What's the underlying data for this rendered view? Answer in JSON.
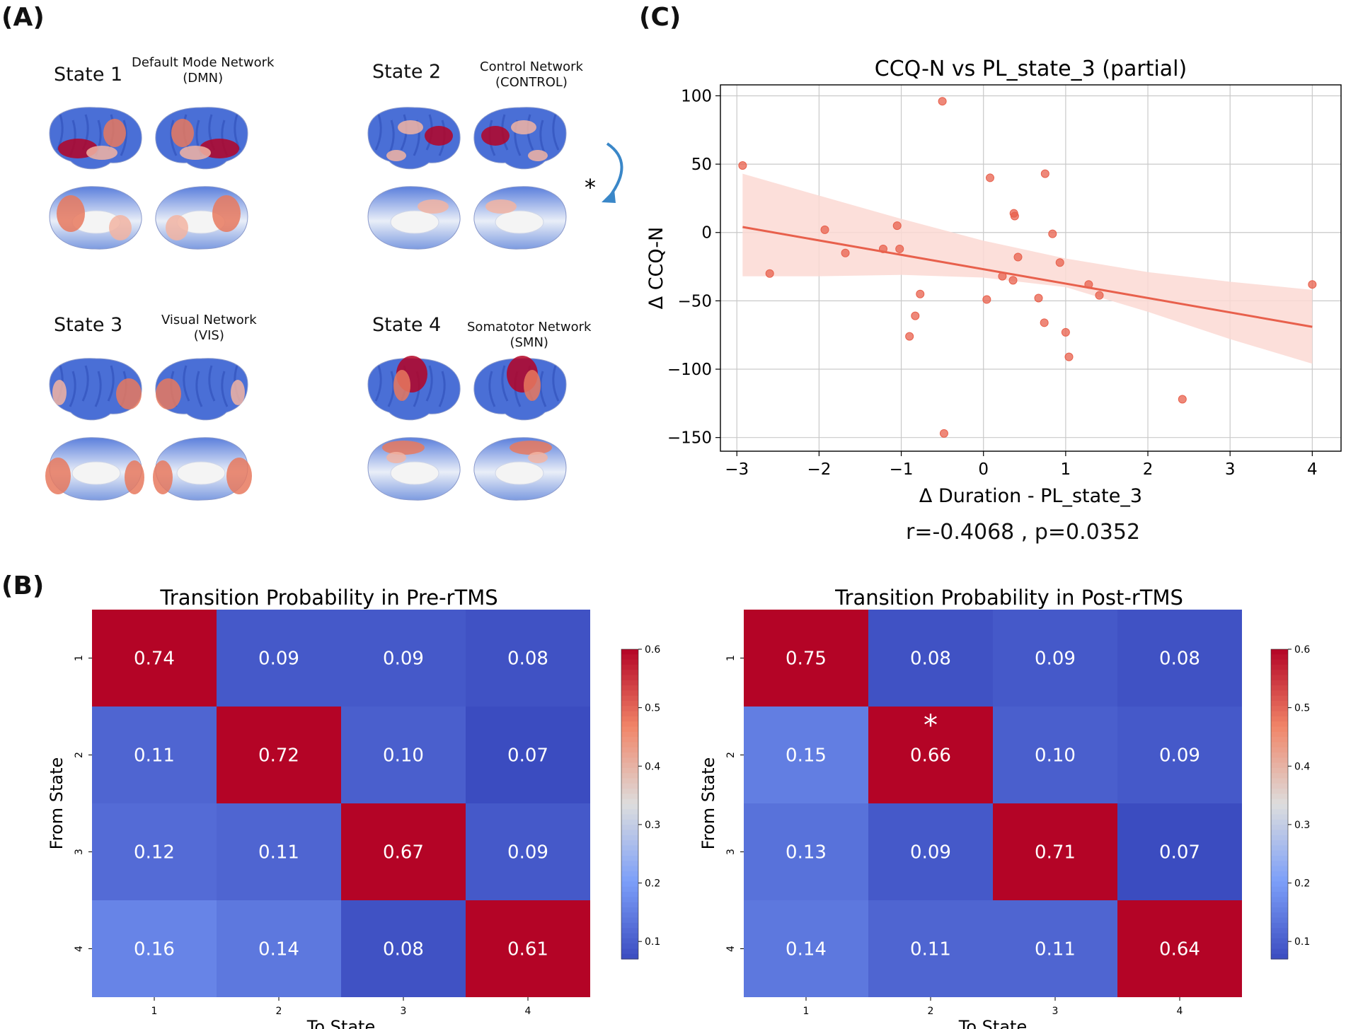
{
  "panel_labels": {
    "a": "(A)",
    "b": "(B)",
    "c": "(C)"
  },
  "states": [
    {
      "label": "State 1",
      "network": "Default Mode Network",
      "abbr": "(DMN)",
      "highlight": "dmn"
    },
    {
      "label": "State 2",
      "network": "Control Network",
      "abbr": "(CONTROL)",
      "highlight": "control"
    },
    {
      "label": "State 3",
      "network": "Visual Network",
      "abbr": "(VIS)",
      "highlight": "vis"
    },
    {
      "label": "State 4",
      "network": "Somatotor Network",
      "abbr": "(SMN)",
      "highlight": "smn"
    }
  ],
  "arrow_marker": "*",
  "colors": {
    "scatter": "#e8604c",
    "ci_band": "#fbd9d3",
    "heat_high": "#b40426",
    "heat_mid": "#dddddd",
    "heat_low": "#3b4cc0",
    "arrow": "#3a87c8"
  },
  "stat_text": "r=-0.4068 , p=0.0352",
  "chart_data": [
    {
      "type": "scatter",
      "title": "CCQ-N vs PL_state_3 (partial)",
      "xlabel": "Δ Duration - PL_state_3",
      "ylabel": "Δ CCQ-N",
      "xlim": [
        -3.2,
        4.35
      ],
      "ylim": [
        -160,
        108
      ],
      "xticks": [
        -3,
        -2,
        -1,
        0,
        1,
        2,
        3,
        4
      ],
      "yticks": [
        100,
        50,
        0,
        -50,
        -100,
        -150
      ],
      "xtick_labels": [
        "−3",
        "−2",
        "−1",
        "0",
        "1",
        "2",
        "3",
        "4"
      ],
      "ytick_labels": [
        "100",
        "50",
        "0",
        "−50",
        "−100",
        "−150"
      ],
      "grid": true,
      "points": [
        {
          "x": -2.93,
          "y": 49
        },
        {
          "x": -2.6,
          "y": -30
        },
        {
          "x": -1.93,
          "y": 2
        },
        {
          "x": -1.68,
          "y": -15
        },
        {
          "x": -1.22,
          "y": -12
        },
        {
          "x": -1.05,
          "y": 5
        },
        {
          "x": -1.02,
          "y": -12
        },
        {
          "x": -0.9,
          "y": -76
        },
        {
          "x": -0.83,
          "y": -61
        },
        {
          "x": -0.77,
          "y": -45
        },
        {
          "x": -0.5,
          "y": 96
        },
        {
          "x": -0.48,
          "y": -147
        },
        {
          "x": 0.04,
          "y": -49
        },
        {
          "x": 0.08,
          "y": 40
        },
        {
          "x": 0.23,
          "y": -32
        },
        {
          "x": 0.36,
          "y": -35
        },
        {
          "x": 0.37,
          "y": 14
        },
        {
          "x": 0.38,
          "y": 12
        },
        {
          "x": 0.42,
          "y": -18
        },
        {
          "x": 0.67,
          "y": -48
        },
        {
          "x": 0.74,
          "y": -66
        },
        {
          "x": 0.75,
          "y": 43
        },
        {
          "x": 0.84,
          "y": -1
        },
        {
          "x": 0.93,
          "y": -22
        },
        {
          "x": 1.0,
          "y": -73
        },
        {
          "x": 1.04,
          "y": -91
        },
        {
          "x": 1.28,
          "y": -38
        },
        {
          "x": 1.41,
          "y": -46
        },
        {
          "x": 2.42,
          "y": -122
        },
        {
          "x": 4.0,
          "y": -38
        }
      ],
      "fit": {
        "x": [
          -2.93,
          4.0
        ],
        "y": [
          4,
          -69
        ]
      },
      "ci_band": {
        "x": [
          -2.93,
          -2,
          -1,
          0,
          1,
          2,
          3,
          4
        ],
        "upper": [
          43,
          27,
          10,
          -6,
          -19,
          -29,
          -36,
          -42
        ],
        "lower": [
          -32,
          -32,
          -31,
          -33,
          -40,
          -58,
          -78,
          -96
        ]
      }
    },
    {
      "type": "heatmap",
      "title": "Transition Probability in Pre-rTMS",
      "xlabel": "To State",
      "ylabel": "From State",
      "row_labels": [
        "1",
        "2",
        "3",
        "4"
      ],
      "col_labels": [
        "1",
        "2",
        "3",
        "4"
      ],
      "values": [
        [
          0.74,
          0.09,
          0.09,
          0.08
        ],
        [
          0.11,
          0.72,
          0.1,
          0.07
        ],
        [
          0.12,
          0.11,
          0.67,
          0.09
        ],
        [
          0.16,
          0.14,
          0.08,
          0.61
        ]
      ],
      "value_labels": [
        [
          "0.74",
          "0.09",
          "0.09",
          "0.08"
        ],
        [
          "0.11",
          "0.72",
          "0.10",
          "0.07"
        ],
        [
          "0.12",
          "0.11",
          "0.67",
          "0.09"
        ],
        [
          "0.16",
          "0.14",
          "0.08",
          "0.61"
        ]
      ],
      "vmin": 0.07,
      "vmax": 0.6,
      "colorbar_ticks": [
        "0.6",
        "0.5",
        "0.4",
        "0.3",
        "0.2",
        "0.1"
      ],
      "colorbar_values": [
        0.6,
        0.5,
        0.4,
        0.3,
        0.2,
        0.1
      ],
      "annotation": null
    },
    {
      "type": "heatmap",
      "title": "Transition Probability in Post-rTMS",
      "xlabel": "To State",
      "ylabel": "From State",
      "row_labels": [
        "1",
        "2",
        "3",
        "4"
      ],
      "col_labels": [
        "1",
        "2",
        "3",
        "4"
      ],
      "values": [
        [
          0.75,
          0.08,
          0.09,
          0.08
        ],
        [
          0.15,
          0.66,
          0.1,
          0.09
        ],
        [
          0.13,
          0.09,
          0.71,
          0.07
        ],
        [
          0.14,
          0.11,
          0.11,
          0.64
        ]
      ],
      "value_labels": [
        [
          "0.75",
          "0.08",
          "0.09",
          "0.08"
        ],
        [
          "0.15",
          "0.66",
          "0.10",
          "0.09"
        ],
        [
          "0.13",
          "0.09",
          "0.71",
          "0.07"
        ],
        [
          "0.14",
          "0.11",
          "0.11",
          "0.64"
        ]
      ],
      "vmin": 0.07,
      "vmax": 0.6,
      "colorbar_ticks": [
        "0.6",
        "0.5",
        "0.4",
        "0.3",
        "0.2",
        "0.1"
      ],
      "colorbar_values": [
        0.6,
        0.5,
        0.4,
        0.3,
        0.2,
        0.1
      ],
      "annotation": {
        "row": 1,
        "col": 1,
        "text": "*"
      }
    }
  ]
}
